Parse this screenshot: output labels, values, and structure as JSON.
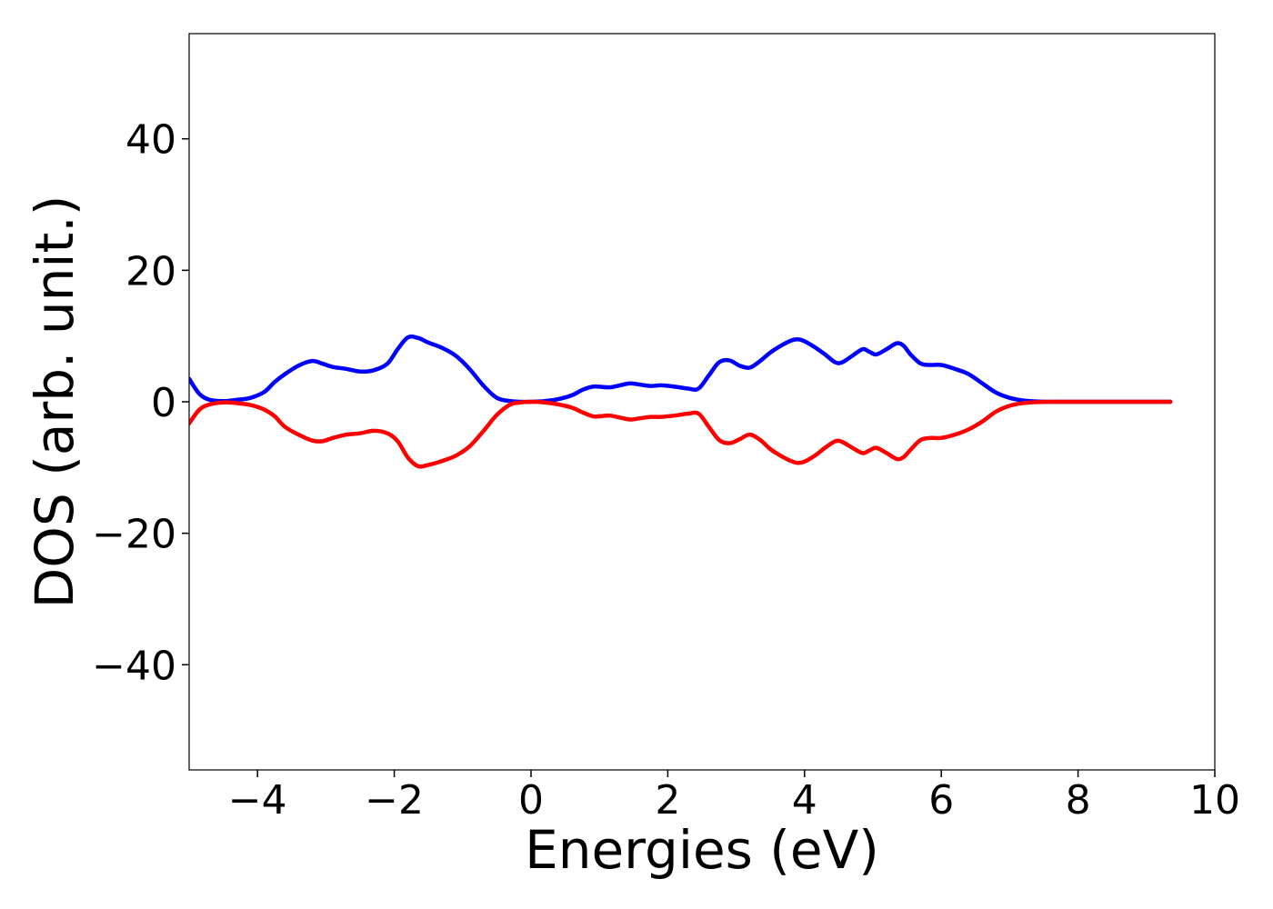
{
  "chart_data": {
    "type": "line",
    "title": "",
    "xlabel": "Energies (eV)",
    "ylabel": "DOS (arb. unit.)",
    "xlim": [
      -5,
      10
    ],
    "ylim": [
      -56,
      56
    ],
    "grid": false,
    "xticks": [
      -4,
      -2,
      0,
      2,
      4,
      6,
      8,
      10
    ],
    "yticks": [
      -40,
      -20,
      0,
      20,
      40
    ],
    "xtick_labels": [
      "−4",
      "−2",
      "0",
      "2",
      "4",
      "6",
      "8",
      "10"
    ],
    "ytick_labels": [
      "−40",
      "−20",
      "0",
      "20",
      "40"
    ],
    "series": [
      {
        "color": "#0000ff",
        "x": [
          -5.0,
          -4.85,
          -4.7,
          -4.5,
          -4.3,
          -4.1,
          -3.9,
          -3.75,
          -3.6,
          -3.4,
          -3.2,
          -3.05,
          -2.9,
          -2.7,
          -2.5,
          -2.3,
          -2.1,
          -1.95,
          -1.8,
          -1.65,
          -1.5,
          -1.3,
          -1.1,
          -0.9,
          -0.7,
          -0.5,
          -0.3,
          -0.15,
          0.0,
          0.2,
          0.4,
          0.6,
          0.75,
          0.9,
          1.0,
          1.15,
          1.3,
          1.45,
          1.6,
          1.75,
          1.9,
          2.1,
          2.3,
          2.45,
          2.6,
          2.75,
          2.9,
          3.05,
          3.2,
          3.35,
          3.5,
          3.65,
          3.8,
          3.9,
          4.0,
          4.15,
          4.3,
          4.45,
          4.55,
          4.7,
          4.85,
          4.95,
          5.05,
          5.2,
          5.35,
          5.45,
          5.55,
          5.7,
          5.85,
          6.0,
          6.2,
          6.4,
          6.6,
          6.8,
          7.0,
          7.2,
          7.4,
          7.6,
          8.0,
          8.5,
          9.0,
          9.35
        ],
        "values": [
          3.5,
          1.2,
          0.3,
          0.1,
          0.3,
          0.6,
          1.5,
          3.0,
          4.2,
          5.5,
          6.2,
          5.8,
          5.3,
          5.0,
          4.6,
          4.8,
          5.8,
          8.0,
          9.8,
          9.7,
          9.0,
          8.2,
          7.0,
          5.0,
          2.5,
          0.6,
          0.1,
          0.0,
          0.0,
          0.1,
          0.4,
          1.0,
          1.8,
          2.3,
          2.3,
          2.2,
          2.5,
          2.8,
          2.6,
          2.4,
          2.5,
          2.3,
          2.0,
          2.0,
          4.0,
          6.0,
          6.3,
          5.5,
          5.2,
          6.2,
          7.5,
          8.5,
          9.3,
          9.5,
          9.2,
          8.3,
          7.2,
          6.0,
          6.0,
          7.0,
          8.0,
          7.6,
          7.2,
          8.0,
          8.9,
          8.5,
          7.2,
          5.8,
          5.6,
          5.6,
          5.0,
          4.2,
          2.8,
          1.4,
          0.6,
          0.2,
          0.05,
          0.0,
          0.0,
          0.0,
          0.0,
          0.0
        ]
      },
      {
        "color": "#ff0000",
        "x": [
          -5.0,
          -4.85,
          -4.7,
          -4.5,
          -4.3,
          -4.1,
          -3.9,
          -3.75,
          -3.6,
          -3.4,
          -3.2,
          -3.05,
          -2.9,
          -2.7,
          -2.5,
          -2.3,
          -2.1,
          -1.95,
          -1.8,
          -1.65,
          -1.5,
          -1.3,
          -1.1,
          -0.9,
          -0.7,
          -0.5,
          -0.3,
          -0.15,
          0.0,
          0.2,
          0.4,
          0.6,
          0.75,
          0.9,
          1.0,
          1.15,
          1.3,
          1.45,
          1.6,
          1.75,
          1.9,
          2.1,
          2.3,
          2.45,
          2.6,
          2.75,
          2.9,
          3.05,
          3.2,
          3.35,
          3.5,
          3.65,
          3.8,
          3.9,
          4.0,
          4.15,
          4.3,
          4.45,
          4.55,
          4.7,
          4.85,
          4.95,
          5.05,
          5.2,
          5.35,
          5.45,
          5.55,
          5.7,
          5.85,
          6.0,
          6.2,
          6.4,
          6.6,
          6.8,
          7.0,
          7.2,
          7.4,
          7.6,
          8.0,
          8.5,
          9.0,
          9.35
        ],
        "values": [
          -3.3,
          -1.2,
          -0.4,
          -0.1,
          -0.2,
          -0.5,
          -1.2,
          -2.2,
          -3.8,
          -5.0,
          -5.9,
          -6.0,
          -5.5,
          -5.0,
          -4.8,
          -4.4,
          -4.8,
          -6.0,
          -8.5,
          -9.8,
          -9.6,
          -9.0,
          -8.2,
          -6.8,
          -4.5,
          -2.0,
          -0.4,
          -0.1,
          0.0,
          -0.1,
          -0.4,
          -0.9,
          -1.6,
          -2.2,
          -2.2,
          -2.1,
          -2.4,
          -2.7,
          -2.5,
          -2.3,
          -2.3,
          -2.1,
          -1.8,
          -1.8,
          -3.8,
          -5.8,
          -6.3,
          -5.7,
          -5.0,
          -5.8,
          -7.2,
          -8.2,
          -9.0,
          -9.3,
          -9.1,
          -8.2,
          -7.0,
          -6.0,
          -6.1,
          -7.0,
          -7.8,
          -7.4,
          -7.0,
          -7.8,
          -8.7,
          -8.4,
          -7.3,
          -5.8,
          -5.5,
          -5.5,
          -5.0,
          -4.2,
          -3.0,
          -1.5,
          -0.6,
          -0.2,
          -0.05,
          0.0,
          0.0,
          0.0,
          0.0,
          0.0
        ]
      }
    ]
  }
}
